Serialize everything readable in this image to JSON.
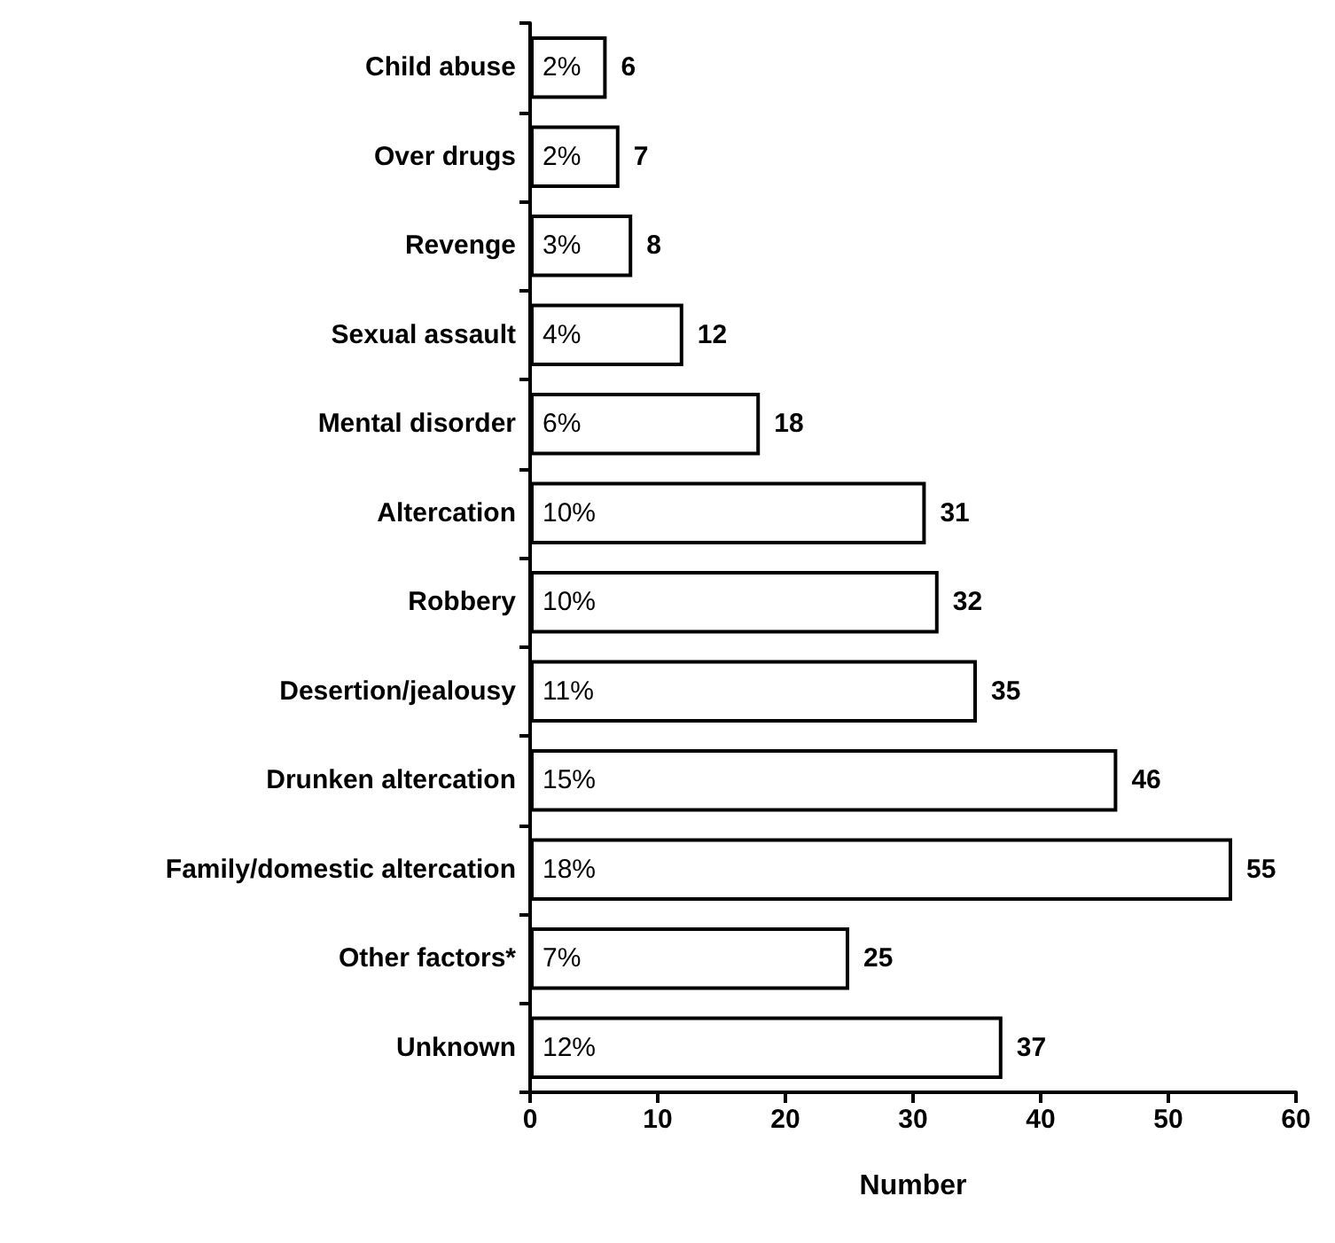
{
  "chart_data": {
    "type": "bar",
    "orientation": "horizontal",
    "xlabel": "Number",
    "categories": [
      "Child abuse",
      "Over drugs",
      "Revenge",
      "Sexual assault",
      "Mental disorder",
      "Altercation",
      "Robbery",
      "Desertion/jealousy",
      "Drunken altercation",
      "Family/domestic altercation",
      "Other factors*",
      "Unknown"
    ],
    "values": [
      6,
      7,
      8,
      12,
      18,
      31,
      32,
      35,
      46,
      55,
      25,
      37
    ],
    "annotations": [
      {
        "text": "2%",
        "y": "Child abuse"
      },
      {
        "text": "2%",
        "y": "Over drugs"
      },
      {
        "text": "3%",
        "y": "Revenge"
      },
      {
        "text": "4%",
        "y": "Sexual assault"
      },
      {
        "text": "6%",
        "y": "Mental disorder"
      },
      {
        "text": "10%",
        "y": "Altercation"
      },
      {
        "text": "10%",
        "y": "Robbery"
      },
      {
        "text": "11%",
        "y": "Desertion/jealousy"
      },
      {
        "text": "15%",
        "y": "Drunken altercation"
      },
      {
        "text": "18%",
        "y": "Family/domestic altercation"
      },
      {
        "text": "7%",
        "y": "Other factors*"
      },
      {
        "text": "12%",
        "y": "Unknown"
      }
    ],
    "data_labels": true,
    "color": "#ffffff",
    "xlim": [
      0,
      60
    ],
    "xticks": [
      0,
      10,
      20,
      30,
      40,
      50,
      60
    ],
    "grid": false
  }
}
